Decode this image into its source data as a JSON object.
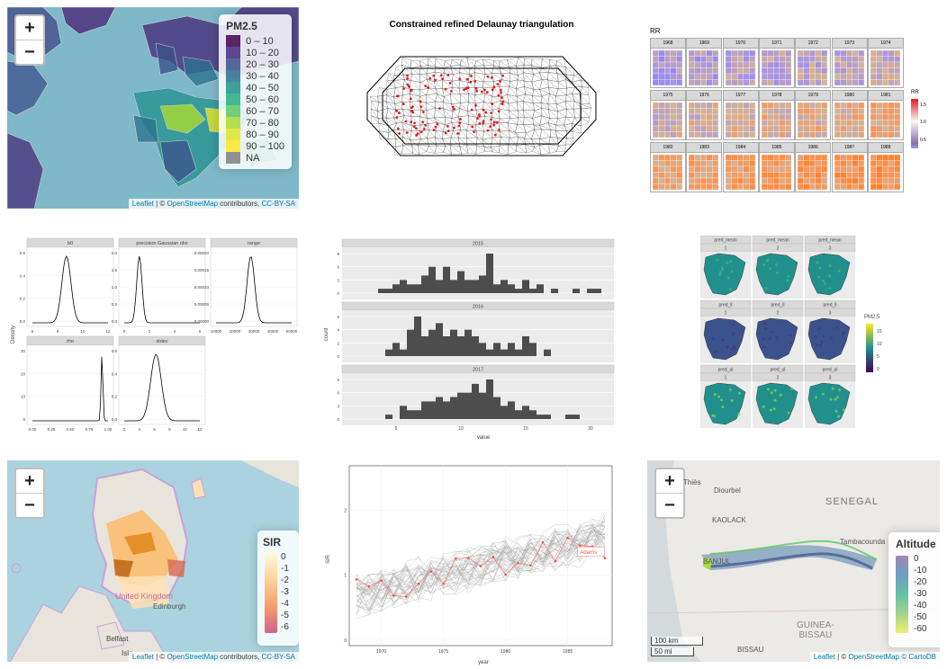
{
  "pm25": {
    "zoom_in": "+",
    "zoom_out": "−",
    "legend_title": "PM2.5",
    "legend_items": [
      {
        "label": "0 – 10",
        "color": "#440154"
      },
      {
        "label": "10 – 20",
        "color": "#472c7a"
      },
      {
        "label": "20 – 30",
        "color": "#3b518b"
      },
      {
        "label": "30 – 40",
        "color": "#2c718e"
      },
      {
        "label": "40 – 50",
        "color": "#21908d"
      },
      {
        "label": "50 – 60",
        "color": "#27ad81"
      },
      {
        "label": "60 – 70",
        "color": "#5cc863"
      },
      {
        "label": "70 – 80",
        "color": "#aadc32"
      },
      {
        "label": "80 – 90",
        "color": "#e0e52a"
      },
      {
        "label": "90 – 100",
        "color": "#fde725"
      },
      {
        "label": "NA",
        "color": "#808080"
      }
    ],
    "attribution": {
      "leaflet": "Leaflet",
      "sep": " | © ",
      "osm": "OpenStreetMap",
      "contrib": " contributors, ",
      "license": "CC-BY-SA"
    }
  },
  "delaunay": {
    "title": "Constrained refined Delaunay triangulation"
  },
  "rr": {
    "title": "RR",
    "years": [
      "1968",
      "1969",
      "1970",
      "1971",
      "1972",
      "1973",
      "1974",
      "1975",
      "1976",
      "1977",
      "1978",
      "1979",
      "1980",
      "1981",
      "1982",
      "1983",
      "1984",
      "1985",
      "1986",
      "1987",
      "1988"
    ],
    "legend_title": "RR",
    "legend_ticks": [
      "1.5",
      "1.0",
      "0.5"
    ]
  },
  "posteriors": {
    "ylabel": "Density",
    "facets": [
      {
        "name": "b0",
        "yticks": [
          "0.6",
          "0.4",
          "0.2",
          "0.0"
        ],
        "xticks": [
          "6",
          "8",
          "10",
          "12"
        ]
      },
      {
        "name": "precision Gaussian obs",
        "yticks": [
          "2.0",
          "1.5",
          "1.0",
          "0.5",
          "0.0"
        ],
        "xticks": [
          "0",
          "2",
          "4",
          "6"
        ]
      },
      {
        "name": "range",
        "yticks": [
          "0.00020",
          "0.00015",
          "0.00010",
          "0.00005",
          "0.00000"
        ],
        "xticks": [
          "10000",
          "20000",
          "30000",
          "40000",
          "50000"
        ]
      },
      {
        "name": "rho",
        "yticks": [
          "30",
          "20",
          "10",
          "0"
        ],
        "xticks": [
          "0.00",
          "0.25",
          "0.50",
          "0.75",
          "1.00"
        ]
      },
      {
        "name": "stdev",
        "yticks": [
          "0.6",
          "0.4",
          "0.2",
          "0.0"
        ],
        "xticks": [
          "2",
          "4",
          "6",
          "8",
          "10",
          "12"
        ]
      }
    ]
  },
  "histograms": {
    "ylabel": "count",
    "xlabel": "value",
    "xticks": [
      "5",
      "10",
      "15",
      "20"
    ],
    "facets": [
      {
        "name": "2015",
        "yticks": [
          "9",
          "6",
          "3",
          "0"
        ]
      },
      {
        "name": "2016",
        "yticks": [
          "6",
          "4",
          "2",
          "0"
        ]
      },
      {
        "name": "2017",
        "yticks": [
          "9",
          "6",
          "3",
          "0"
        ]
      }
    ]
  },
  "spain": {
    "rows": [
      "pred_mean",
      "pred_ll",
      "pred_ul"
    ],
    "cols": [
      "1",
      "2",
      "3"
    ],
    "legend_title": "PM2.5",
    "legend_ticks": [
      "15",
      "10",
      "5",
      "0"
    ]
  },
  "sir": {
    "zoom_in": "+",
    "zoom_out": "−",
    "legend_title": "SIR",
    "legend_ticks": [
      "0",
      "-1",
      "-2",
      "-3",
      "-4",
      "-5",
      "-6"
    ],
    "places": [
      "United Kingdom",
      "Edinburgh",
      "Belfast",
      "Isle"
    ],
    "attribution": {
      "leaflet": "Leaflet",
      "sep": " | © ",
      "osm": "OpenStreetMap",
      "contrib": " contributors, ",
      "license": "CC-BY-SA"
    }
  },
  "spaghetti": {
    "ylabel": "SIR",
    "xlabel": "year",
    "yticks": [
      "2",
      "1",
      "0"
    ],
    "xticks": [
      "1970",
      "1975",
      "1980",
      "1985"
    ],
    "highlight": "Adams"
  },
  "altitude": {
    "zoom_in": "+",
    "zoom_out": "−",
    "legend_title": "Altitude",
    "legend_ticks": [
      "0",
      "-10",
      "-20",
      "-30",
      "-40",
      "-50",
      "-60"
    ],
    "places": [
      "Thiès",
      "Diourbel",
      "SENEGAL",
      "KAOLACK",
      "Tambacounda",
      "BANJUL",
      "GUINEA-",
      "BISSAU",
      "BISSAU"
    ],
    "scale": [
      "100 km",
      "50 mi"
    ],
    "attribution": {
      "leaflet": "Leaflet",
      "sep": " | © ",
      "osm": "OpenStreetMap",
      "cdb": " © CartoDB"
    }
  }
}
